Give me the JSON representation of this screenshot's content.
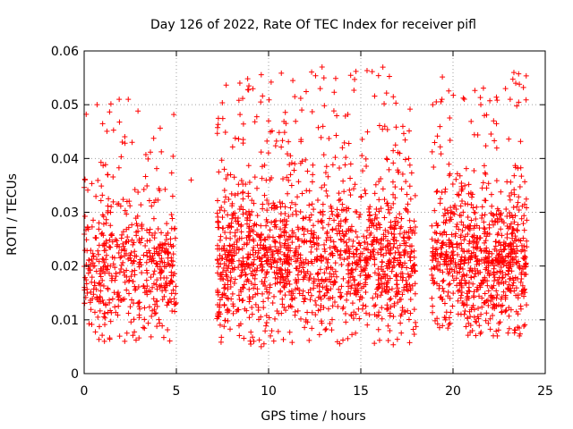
{
  "chart_data": {
    "type": "scatter",
    "title": "Day 126 of 2022, Rate Of TEC Index for receiver pifl",
    "xlabel": "GPS time / hours",
    "ylabel": "ROTI / TECUs",
    "xlim": [
      0,
      25
    ],
    "ylim": [
      0,
      0.06
    ],
    "xticks": [
      0,
      5,
      10,
      15,
      20,
      25
    ],
    "yticks": [
      0,
      0.01,
      0.02,
      0.03,
      0.04,
      0.05,
      0.06
    ],
    "xtick_labels": [
      "0",
      "5",
      "10",
      "15",
      "20",
      "25"
    ],
    "ytick_labels": [
      "0",
      "0.01",
      "0.02",
      "0.03",
      "0.04",
      "0.05",
      "0.06"
    ],
    "grid": true,
    "marker": "+",
    "color": "#ff0000",
    "series": [
      {
        "name": "pifl",
        "segments": [
          {
            "x_start": 0.0,
            "x_end": 5.0,
            "median": 0.019,
            "spread": 0.006,
            "min": 0.006,
            "max": 0.051,
            "count": 520
          },
          {
            "x_start": 7.2,
            "x_end": 18.0,
            "median": 0.02,
            "spread": 0.0065,
            "min": 0.005,
            "max": 0.057,
            "count": 1500
          },
          {
            "x_start": 18.8,
            "x_end": 24.0,
            "median": 0.02,
            "spread": 0.0065,
            "min": 0.007,
            "max": 0.056,
            "count": 800
          }
        ],
        "points": [
          [
            5.8,
            0.036
          ],
          [
            0.7,
            0.05
          ],
          [
            1.9,
            0.051
          ],
          [
            2.6,
            0.043
          ],
          [
            4.8,
            0.033
          ],
          [
            12.9,
            0.057
          ],
          [
            13.0,
            0.055
          ],
          [
            12.8,
            0.053
          ],
          [
            10.0,
            0.047
          ],
          [
            11.8,
            0.049
          ],
          [
            16.3,
            0.046
          ],
          [
            18.9,
            0.05
          ],
          [
            19.4,
            0.051
          ],
          [
            22.2,
            0.047
          ],
          [
            23.1,
            0.051
          ],
          [
            23.3,
            0.056
          ],
          [
            23.4,
            0.054
          ],
          [
            21.7,
            0.048
          ],
          [
            2.2,
            0.006
          ],
          [
            1.1,
            0.006
          ],
          [
            9.2,
            0.006
          ],
          [
            9.6,
            0.005
          ],
          [
            10.1,
            0.007
          ],
          [
            22.4,
            0.007
          ],
          [
            23.6,
            0.007
          ],
          [
            14.0,
            0.042
          ],
          [
            16.4,
            0.04
          ],
          [
            17.6,
            0.04
          ],
          [
            7.6,
            0.038
          ],
          [
            8.9,
            0.033
          ]
        ]
      }
    ]
  }
}
